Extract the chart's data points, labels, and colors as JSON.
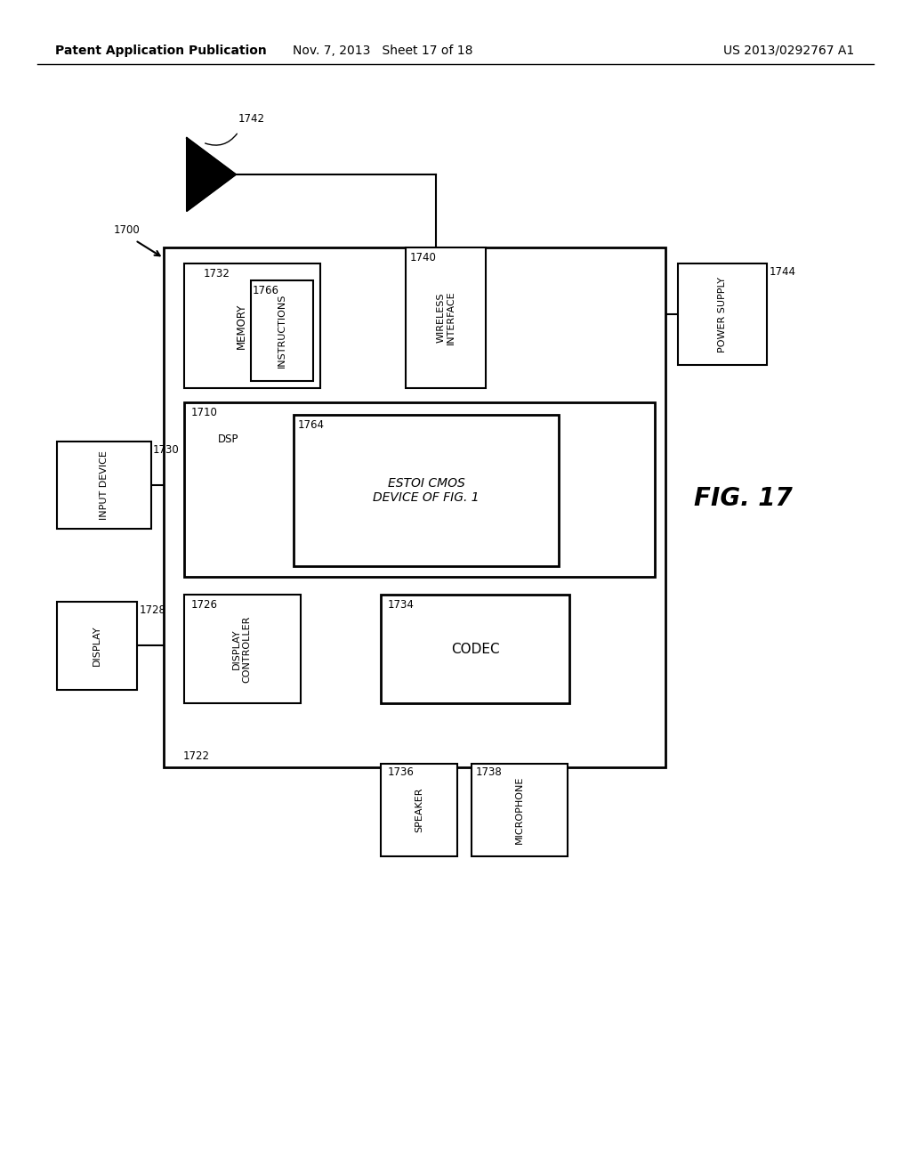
{
  "bg_color": "#ffffff",
  "header_left": "Patent Application Publication",
  "header_mid": "Nov. 7, 2013   Sheet 17 of 18",
  "header_right": "US 2013/0292767 A1",
  "fig_label": "FIG. 17"
}
